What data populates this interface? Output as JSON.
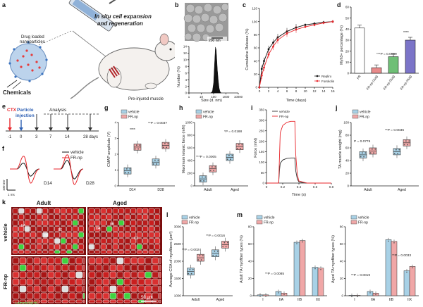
{
  "figure": {
    "panel_labels": [
      "a",
      "b",
      "c",
      "d",
      "e",
      "f",
      "g",
      "h",
      "i",
      "j",
      "k",
      "l",
      "m"
    ]
  },
  "panel_a": {
    "title_line1": "In situ cell expansion",
    "title_line2": "and regeneration",
    "drug_label_line1": "Drug loaded",
    "drug_label_line2": "nanoparticles",
    "chemicals_label": "Chemicals",
    "muscle_label": "Pre-injured muscle"
  },
  "panel_b": {
    "scale_bar": "200 nm",
    "xlabel": "Size (d. nm)",
    "ylabel": "Number (%)",
    "xticks": [
      "1",
      "10",
      "100",
      "1000",
      "10000"
    ],
    "yticks": [
      "0",
      "2",
      "4",
      "6",
      "8",
      "10",
      "12",
      "14"
    ]
  },
  "panel_c": {
    "xlabel": "Time (days)",
    "ylabel": "Cumulative Release (%)",
    "legend": [
      "Repliro",
      "Forskolin"
    ]
  },
  "panel_d": {
    "ylabel": "Myh3+ percentage (%)",
    "pvals": [
      "***P = 0.0069",
      "****"
    ]
  },
  "panel_e": {
    "ctx": "CTX",
    "particle_line1": "Particle",
    "particle_line2": "injection",
    "analysis": "Analysis",
    "days": [
      "-1",
      "0",
      "3",
      "7",
      "14",
      "28 days"
    ]
  },
  "panel_f": {
    "legend": [
      "vehicle",
      "FR-np"
    ],
    "d14": "D14",
    "d28": "D28",
    "scale_v": "100 mV",
    "scale_t": "1 ms"
  },
  "panel_g": {
    "ylabel": "CMAP amplitude (V)",
    "legend": [
      "vehicle",
      "FR-np"
    ],
    "pvals": [
      "****",
      "**P = 0.0037"
    ]
  },
  "panel_h": {
    "ylabel": "Maximum tetanic force (mN)",
    "legend": [
      "vehicle",
      "FR-np"
    ],
    "pvals": [
      "***P = 0.0005",
      "*P = 0.0188"
    ]
  },
  "panel_i": {
    "xlabel": "Time (s)",
    "ylabel": "Force (mN)",
    "legend": [
      "vehicle",
      "FR-np"
    ]
  },
  "panel_j": {
    "ylabel": "TA muscle weight (mg)",
    "legend": [
      "vehicle",
      "FR-np"
    ],
    "pvals": [
      "P = 0.0776",
      "**P = 0.0036"
    ]
  },
  "panel_k": {
    "col_adult": "Adult",
    "col_aged": "Aged",
    "row_vehicle": "vehicle",
    "row_frnp": "FR-np",
    "stain": "Laminin/MyHC",
    "scale": "50 μm",
    "fiber_labels": [
      "IIA",
      "IIB",
      "IIX",
      "IIA",
      "IIB",
      "IIX"
    ]
  },
  "panel_l": {
    "ylabel": "Average CSA of myofibers (μm²)",
    "legend": [
      "vehicle",
      "FR-np"
    ],
    "pvals": [
      "**P = 0.0024",
      "**P = 0.0016"
    ]
  },
  "panel_m": {
    "ylabel_left": "Adult TA myofiber types (%)",
    "ylabel_right": "Aged TA myofiber types (%)",
    "legend": [
      "vehicle",
      "FR-np"
    ],
    "pval_left": "**P = 0.0085",
    "pvals_right": [
      "**P = 0.0019",
      "**P = 0.0033"
    ]
  },
  "chart_data": [
    {
      "panel": "b",
      "type": "area",
      "x": [
        60,
        80,
        100,
        120,
        140,
        160,
        180,
        200,
        240,
        280,
        320,
        360,
        420
      ],
      "y": [
        0,
        0.5,
        3,
        9,
        13.8,
        13,
        10,
        7,
        3.5,
        1.5,
        0.6,
        0.2,
        0
      ],
      "xscale": "log",
      "xlim": [
        1,
        10000
      ],
      "ylim": [
        0,
        14
      ],
      "xlabel": "Size (d. nm)",
      "ylabel": "Number (%)"
    },
    {
      "panel": "c",
      "type": "line",
      "xlabel": "Time (days)",
      "ylabel": "Cumulative Release (%)",
      "xlim": [
        0,
        16
      ],
      "ylim": [
        0,
        120
      ],
      "xticks": [
        0,
        2,
        4,
        6,
        8,
        10,
        12,
        14,
        16
      ],
      "yticks": [
        0,
        20,
        40,
        60,
        80,
        100,
        120
      ],
      "x": [
        0,
        0.5,
        1,
        2,
        3,
        4,
        6,
        8,
        10,
        12,
        14,
        16
      ],
      "series": [
        {
          "name": "Repliro",
          "color": "#111111",
          "values": [
            0,
            28,
            40,
            58,
            68,
            76,
            85,
            91,
            95,
            97,
            99,
            100
          ]
        },
        {
          "name": "Forskolin",
          "color": "#e8262b",
          "values": [
            0,
            18,
            30,
            50,
            62,
            72,
            82,
            88,
            92,
            95,
            98,
            100
          ]
        }
      ]
    },
    {
      "panel": "d",
      "type": "bar",
      "categories": [
        "FR",
        "FR-np (1μg)",
        "FR-np (2μg)",
        "FR-np (4μg)"
      ],
      "values": [
        41,
        5,
        15,
        30
      ],
      "ylim": [
        0,
        60
      ],
      "yticks": [
        0,
        10,
        20,
        30,
        40,
        50,
        60
      ],
      "ylabel": "Myh3+ percentage (%)"
    },
    {
      "panel": "g",
      "type": "box",
      "ylabel": "CMAP amplitude (V)",
      "categories": [
        "D14",
        "D28"
      ],
      "ylim": [
        0,
        4
      ],
      "yticks": [
        0,
        1,
        2,
        3,
        4
      ],
      "series": [
        {
          "name": "vehicle",
          "values": [
            0.95,
            1.5
          ]
        },
        {
          "name": "FR-np",
          "values": [
            2.45,
            2.55
          ]
        }
      ]
    },
    {
      "panel": "h",
      "type": "box",
      "ylabel": "Maximum tetanic force (mN)",
      "categories": [
        "Adult",
        "Aged"
      ],
      "ylim": [
        0,
        1000
      ],
      "yticks": [
        0,
        200,
        400,
        600,
        800,
        1000
      ],
      "series": [
        {
          "name": "vehicle",
          "values": [
            110,
            450
          ]
        },
        {
          "name": "FR-np",
          "values": [
            270,
            620
          ]
        }
      ]
    },
    {
      "panel": "i",
      "type": "line",
      "xlabel": "Time (s)",
      "ylabel": "Force (mN)",
      "xlim": [
        0,
        0.8
      ],
      "ylim": [
        0,
        350
      ],
      "xticks": [
        0,
        0.2,
        0.4,
        0.6,
        0.8
      ],
      "yticks": [
        0,
        50,
        100,
        150,
        200,
        250,
        300,
        350
      ],
      "x": [
        0,
        0.15,
        0.16,
        0.17,
        0.2,
        0.25,
        0.3,
        0.35,
        0.36,
        0.38,
        0.4,
        0.5,
        0.8
      ],
      "series": [
        {
          "name": "vehicle",
          "color": "#333333",
          "values": [
            0,
            0,
            60,
            95,
            110,
            118,
            120,
            120,
            60,
            20,
            5,
            0,
            0
          ]
        },
        {
          "name": "FR-np",
          "color": "#e8262b",
          "values": [
            0,
            0,
            120,
            240,
            275,
            290,
            295,
            295,
            140,
            40,
            10,
            0,
            0
          ]
        }
      ]
    },
    {
      "panel": "j",
      "type": "box",
      "ylabel": "TA muscle weight (mg)",
      "categories": [
        "Adult",
        "Aged"
      ],
      "ylim": [
        0,
        100
      ],
      "yticks": [
        0,
        20,
        40,
        60,
        80,
        100
      ],
      "series": [
        {
          "name": "vehicle",
          "values": [
            49,
            54
          ]
        },
        {
          "name": "FR-np",
          "values": [
            55,
            68
          ]
        }
      ]
    },
    {
      "panel": "l",
      "type": "box",
      "ylabel": "Average CSA of myofibers (μm²)",
      "categories": [
        "Adult",
        "Aged"
      ],
      "ylim": [
        1000,
        3000
      ],
      "yticks": [
        1000,
        1500,
        2000,
        2500,
        3000
      ],
      "series": [
        {
          "name": "vehicle",
          "values": [
            1700,
            2230
          ]
        },
        {
          "name": "FR-np",
          "values": [
            2100,
            2480
          ]
        }
      ]
    },
    {
      "panel": "m-left",
      "type": "bar",
      "ylabel": "Adult TA myofiber types (%)",
      "categories": [
        "I",
        "IIA",
        "IIB",
        "IIX"
      ],
      "ylim": [
        0,
        80
      ],
      "yticks": [
        0,
        20,
        40,
        60,
        80
      ],
      "series": [
        {
          "name": "vehicle",
          "values": [
            1,
            5,
            62,
            33
          ]
        },
        {
          "name": "FR-np",
          "values": [
            1,
            3,
            64,
            32
          ]
        }
      ]
    },
    {
      "panel": "m-right",
      "type": "bar",
      "ylabel": "Aged TA myofiber types (%)",
      "categories": [
        "I",
        "IIA",
        "IIB",
        "IIX"
      ],
      "ylim": [
        0,
        80
      ],
      "yticks": [
        0,
        20,
        40,
        60,
        80
      ],
      "series": [
        {
          "name": "vehicle",
          "values": [
            0.5,
            5,
            65,
            29
          ]
        },
        {
          "name": "FR-np",
          "values": [
            0.5,
            3,
            63,
            34
          ]
        }
      ]
    }
  ]
}
